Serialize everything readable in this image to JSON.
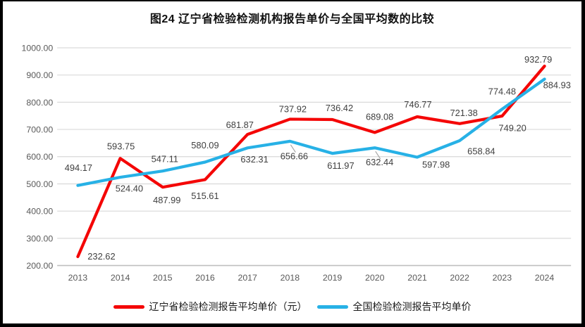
{
  "title": "图24 辽宁省检验检测机构报告单价与全国平均数的比较",
  "colors": {
    "liaoning_red": "#F40606",
    "national_blue": "#27B1E6",
    "gridline": "#D9D9D9",
    "axis_line": "#BFBFBF",
    "axis_text": "#595959",
    "data_label_text": "#3F3F3F",
    "leader_line": "#A6A6A6"
  },
  "chart_data": {
    "type": "line",
    "title": "图24 辽宁省检验检测机构报告单价与全国平均数的比较",
    "categories": [
      "2013",
      "2014",
      "2015",
      "2016",
      "2017",
      "2018",
      "2019",
      "2020",
      "2021",
      "2022",
      "2023",
      "2024"
    ],
    "series": [
      {
        "name": "辽宁省检验检测报告平均单价（元）",
        "color": "#F40606",
        "values": [
          232.62,
          593.75,
          487.99,
          515.61,
          681.87,
          737.92,
          736.42,
          689.08,
          746.77,
          721.38,
          749.2,
          932.79
        ],
        "label_offsets": [
          [
            14,
            4,
            "start"
          ],
          [
            1,
            -13
          ],
          [
            6,
            23
          ],
          [
            0,
            28
          ],
          [
            -11,
            -9
          ],
          [
            4,
            -10
          ],
          [
            10,
            -12
          ],
          [
            7,
            -18
          ],
          [
            1,
            -13
          ],
          [
            6,
            -11
          ],
          [
            15,
            22
          ],
          [
            -9,
            -5
          ]
        ]
      },
      {
        "name": "全国检验检测报告平均单价",
        "color": "#27B1E6",
        "values": [
          494.17,
          524.4,
          547.11,
          580.09,
          632.31,
          656.66,
          611.97,
          632.44,
          597.98,
          658.84,
          774.48,
          884.93
        ],
        "label_offsets": [
          [
            1,
            -21
          ],
          [
            13,
            21
          ],
          [
            3,
            -13
          ],
          [
            0,
            -20
          ],
          [
            10,
            21
          ],
          [
            6,
            26
          ],
          [
            12,
            22
          ],
          [
            7,
            25
          ],
          [
            27,
            15
          ],
          [
            31,
            20
          ],
          [
            0,
            -21
          ],
          [
            -2,
            13,
            "start"
          ]
        ]
      }
    ],
    "leaders": [
      {
        "series": 1,
        "index": 5
      },
      {
        "series": 1,
        "index": 7
      }
    ],
    "xlabel": "",
    "ylabel": "",
    "ylim": [
      200,
      1000
    ],
    "ytick_step": 100,
    "ytick_labels": [
      "200.00",
      "300.00",
      "400.00",
      "500.00",
      "600.00",
      "700.00",
      "800.00",
      "900.00",
      "1000.00"
    ],
    "grid": true,
    "legend_position": "bottom",
    "value_decimals": 2
  }
}
